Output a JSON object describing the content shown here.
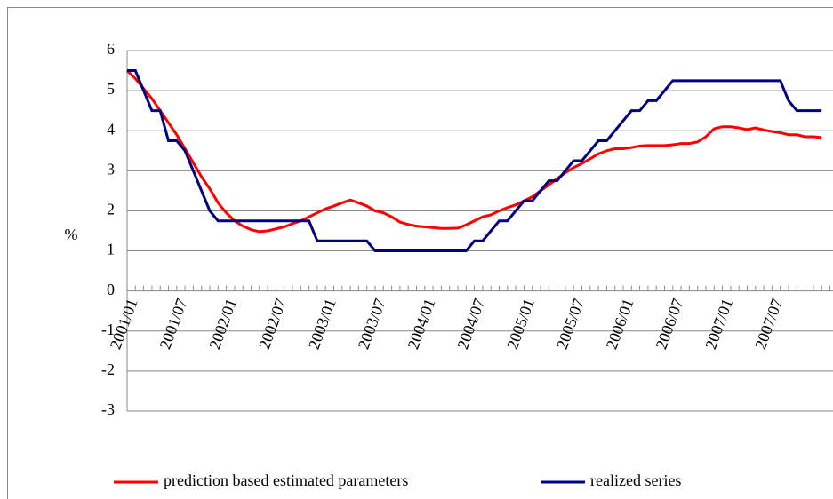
{
  "chart_data": {
    "type": "line",
    "y_label": "%",
    "categories": [
      "2001/01",
      null,
      null,
      null,
      null,
      null,
      "2001/07",
      null,
      null,
      null,
      null,
      null,
      "2002/01",
      null,
      null,
      null,
      null,
      null,
      "2002/07",
      null,
      null,
      null,
      null,
      null,
      "2003/01",
      null,
      null,
      null,
      null,
      null,
      "2003/07",
      null,
      null,
      null,
      null,
      null,
      "2004/01",
      null,
      null,
      null,
      null,
      null,
      "2004/07",
      null,
      null,
      null,
      null,
      null,
      "2005/01",
      null,
      null,
      null,
      null,
      null,
      "2005/07",
      null,
      null,
      null,
      null,
      null,
      "2006/01",
      null,
      null,
      null,
      null,
      null,
      "2006/07",
      null,
      null,
      null,
      null,
      null,
      "2007/01",
      null,
      null,
      null,
      null,
      null,
      "2007/07",
      null,
      null,
      null,
      null,
      null,
      null
    ],
    "series": [
      {
        "name": "prediction based estimated parameters",
        "color": "#ff0000",
        "values": [
          5.5,
          5.3,
          5.05,
          4.8,
          4.5,
          4.2,
          3.9,
          3.55,
          3.2,
          2.85,
          2.55,
          2.2,
          1.95,
          1.75,
          1.62,
          1.53,
          1.48,
          1.5,
          1.55,
          1.6,
          1.68,
          1.75,
          1.85,
          1.95,
          2.05,
          2.12,
          2.2,
          2.27,
          2.2,
          2.12,
          2.0,
          1.95,
          1.85,
          1.72,
          1.66,
          1.62,
          1.6,
          1.58,
          1.56,
          1.56,
          1.57,
          1.65,
          1.75,
          1.85,
          1.9,
          2.0,
          2.08,
          2.15,
          2.25,
          2.35,
          2.5,
          2.65,
          2.8,
          2.95,
          3.08,
          3.18,
          3.3,
          3.42,
          3.5,
          3.55,
          3.55,
          3.58,
          3.62,
          3.63,
          3.63,
          3.63,
          3.65,
          3.68,
          3.68,
          3.72,
          3.85,
          4.05,
          4.1,
          4.1,
          4.07,
          4.03,
          4.07,
          4.02,
          3.98,
          3.95,
          3.9,
          3.9,
          3.85,
          3.85,
          3.83
        ]
      },
      {
        "name": "realized series",
        "color": "#000080",
        "values": [
          5.5,
          5.5,
          5.0,
          4.5,
          4.5,
          3.75,
          3.75,
          3.5,
          3.0,
          2.5,
          2.0,
          1.75,
          1.75,
          1.75,
          1.75,
          1.75,
          1.75,
          1.75,
          1.75,
          1.75,
          1.75,
          1.75,
          1.75,
          1.25,
          1.25,
          1.25,
          1.25,
          1.25,
          1.25,
          1.25,
          1.0,
          1.0,
          1.0,
          1.0,
          1.0,
          1.0,
          1.0,
          1.0,
          1.0,
          1.0,
          1.0,
          1.0,
          1.25,
          1.25,
          1.5,
          1.75,
          1.75,
          2.0,
          2.25,
          2.25,
          2.5,
          2.75,
          2.75,
          3.0,
          3.25,
          3.25,
          3.5,
          3.75,
          3.75,
          4.0,
          4.25,
          4.5,
          4.5,
          4.75,
          4.75,
          5.0,
          5.25,
          5.25,
          5.25,
          5.25,
          5.25,
          5.25,
          5.25,
          5.25,
          5.25,
          5.25,
          5.25,
          5.25,
          5.25,
          5.25,
          4.75,
          4.5,
          4.5,
          4.5,
          4.5
        ]
      }
    ],
    "ylim": [
      -3,
      6
    ],
    "yticks": [
      -3,
      -2,
      -1,
      0,
      1,
      2,
      3,
      4,
      5,
      6
    ],
    "grid": true,
    "legend": "bottom"
  }
}
